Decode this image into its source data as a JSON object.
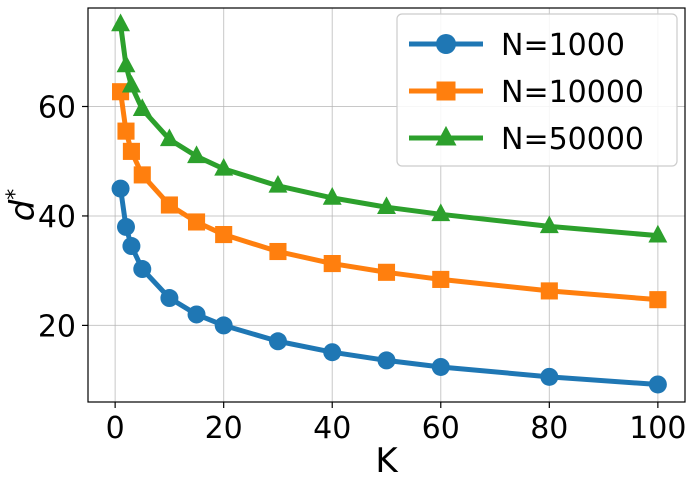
{
  "chart_data": {
    "type": "line",
    "title": "",
    "xlabel": "K",
    "ylabel_base": "d",
    "ylabel_sup": "*",
    "xlim": [
      -5,
      105
    ],
    "ylim": [
      6,
      78
    ],
    "xticks": [
      0,
      20,
      40,
      60,
      80,
      100
    ],
    "yticks": [
      20,
      40,
      60
    ],
    "grid": true,
    "legend_position": "top-right",
    "x": [
      1,
      2,
      3,
      5,
      10,
      15,
      20,
      30,
      40,
      50,
      60,
      80,
      100
    ],
    "series": [
      {
        "name": "N=1000",
        "color": "#1f77b4",
        "marker": "circle",
        "values": [
          45,
          38,
          34.5,
          30.3,
          25,
          22,
          20,
          17.1,
          15.1,
          13.6,
          12.4,
          10.6,
          9.2
        ]
      },
      {
        "name": "N=10000",
        "color": "#ff7f0e",
        "marker": "square",
        "values": [
          62.7,
          55.5,
          51.8,
          47.5,
          42,
          38.9,
          36.6,
          33.5,
          31.3,
          29.7,
          28.4,
          26.3,
          24.7
        ]
      },
      {
        "name": "N=50000",
        "color": "#2ca02c",
        "marker": "triangle",
        "values": [
          75,
          67.5,
          63.8,
          59.5,
          54,
          50.9,
          48.6,
          45.5,
          43.3,
          41.6,
          40.3,
          38.1,
          36.4
        ]
      }
    ]
  }
}
